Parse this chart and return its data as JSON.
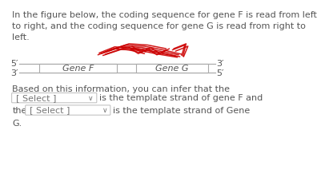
{
  "title_text": "In the figure below, the coding sequence for gene F is read from left\nto right, and the coding sequence for gene G is read from right to\nleft.",
  "strand_top_label_left": "5′",
  "strand_top_label_right": "3′",
  "strand_bot_label_left": "3′",
  "strand_bot_label_right": "5′",
  "gene_f_label": "Gene F",
  "gene_g_label": "Gene G",
  "question_text": "Based on this information, you can infer that the",
  "select1_label": "[ Select ]",
  "after_select1": "is the template strand of gene F and",
  "prefix_select2": "the",
  "select2_label": "[ Select ]",
  "after_select2": "is the template strand of Gene",
  "final_line": "G.",
  "bg_color": "#ffffff",
  "text_color": "#555555",
  "line_color": "#aaaaaa",
  "box_edge_color": "#aaaaaa",
  "box_face_color": "#ffffff",
  "red_color": "#cc0000",
  "font_size_body": 8.0,
  "font_size_strand": 8.0
}
